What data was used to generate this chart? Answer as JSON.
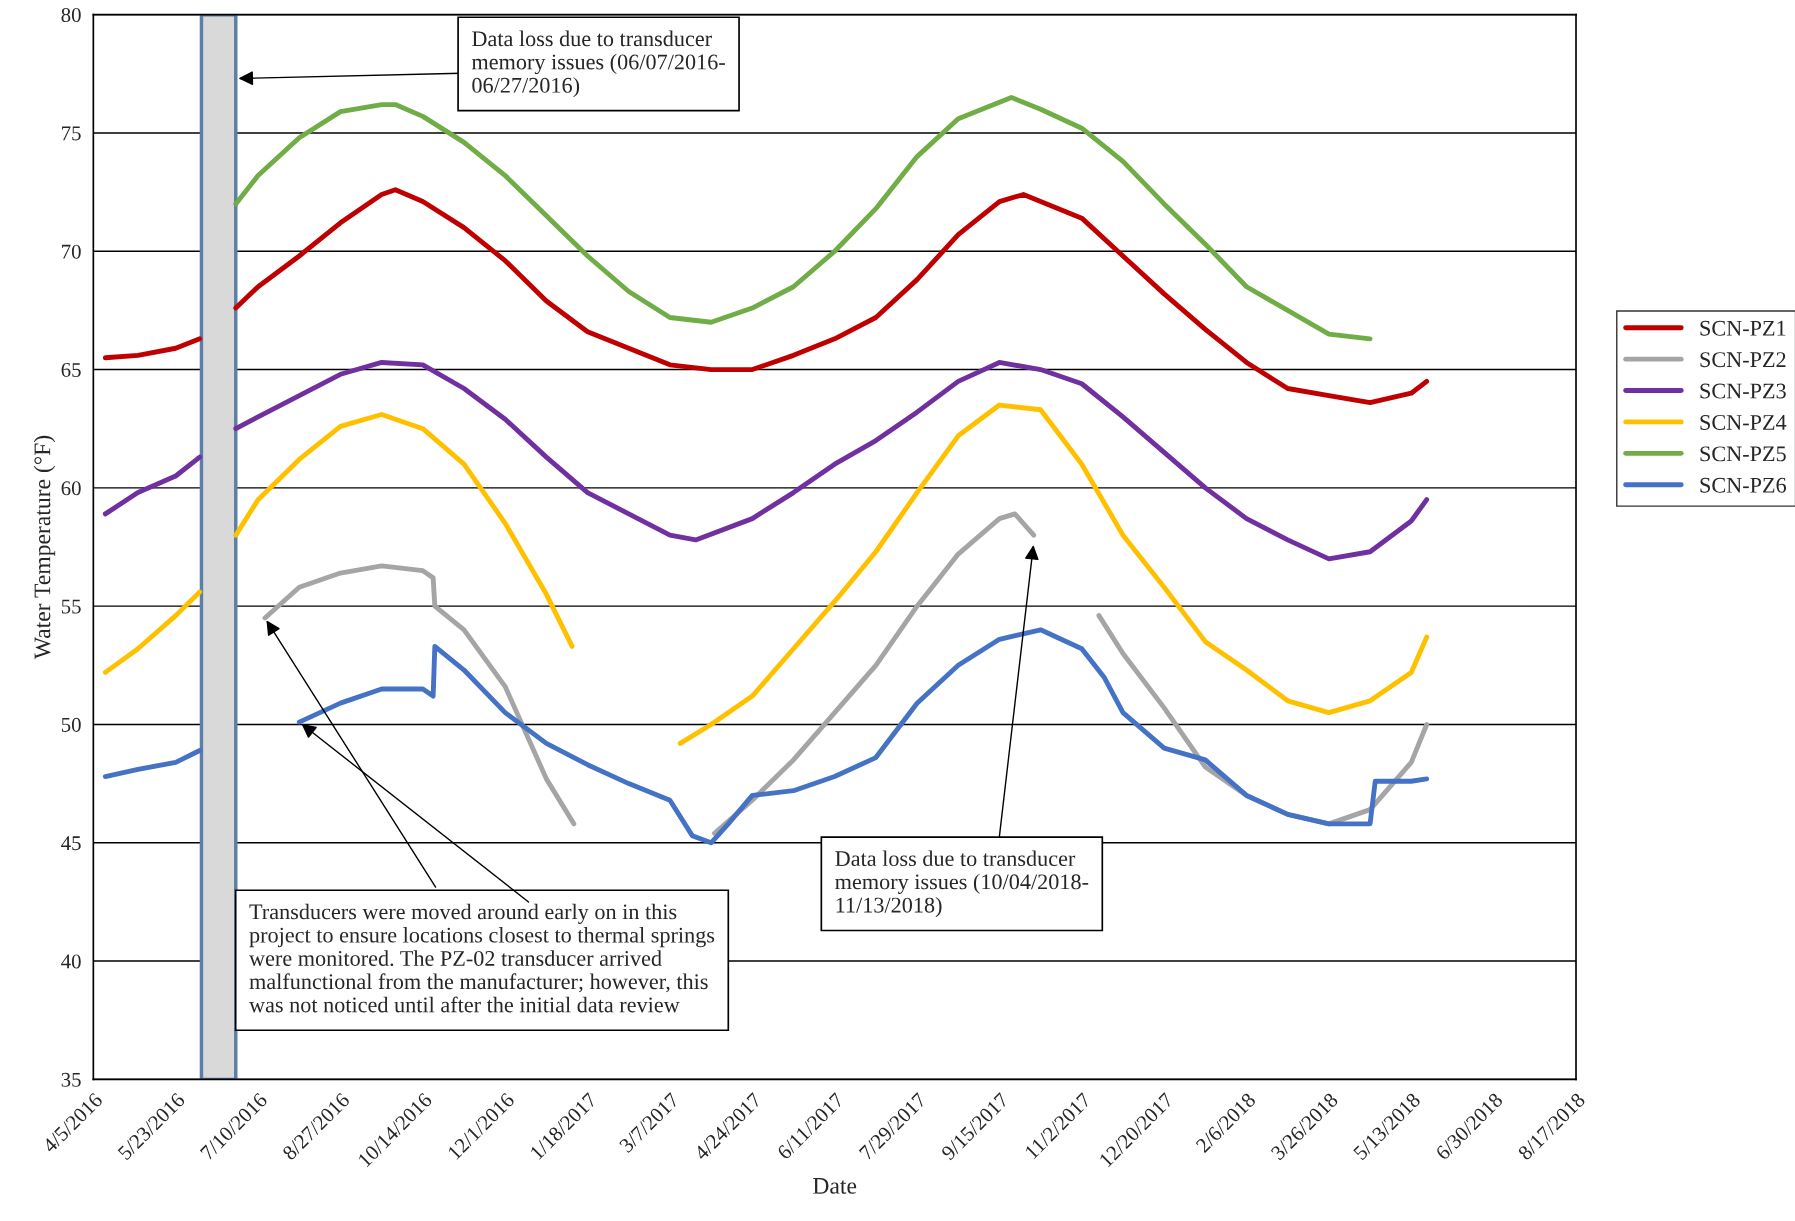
{
  "chart_data": {
    "type": "line",
    "xlabel": "Date",
    "ylabel": "Water Temperature (°F)",
    "xlim": [
      "2016-04-05",
      "2018-08-17"
    ],
    "ylim": [
      35,
      80
    ],
    "yticks": [
      35,
      40,
      45,
      50,
      55,
      60,
      65,
      70,
      75,
      80
    ],
    "xticks": [
      {
        "value": "2016-04-05",
        "label": "4/5/2016"
      },
      {
        "value": "2016-05-23",
        "label": "5/23/2016"
      },
      {
        "value": "2016-07-10",
        "label": "7/10/2016"
      },
      {
        "value": "2016-08-27",
        "label": "8/27/2016"
      },
      {
        "value": "2016-10-14",
        "label": "10/14/2016"
      },
      {
        "value": "2016-12-01",
        "label": "12/1/2016"
      },
      {
        "value": "2017-01-18",
        "label": "1/18/2017"
      },
      {
        "value": "2017-03-07",
        "label": "3/7/2017"
      },
      {
        "value": "2017-04-24",
        "label": "4/24/2017"
      },
      {
        "value": "2017-06-11",
        "label": "6/11/2017"
      },
      {
        "value": "2017-07-29",
        "label": "7/29/2017"
      },
      {
        "value": "2017-09-15",
        "label": "9/15/2017"
      },
      {
        "value": "2017-11-02",
        "label": "11/2/2017"
      },
      {
        "value": "2017-12-20",
        "label": "12/20/2017"
      },
      {
        "value": "2018-02-06",
        "label": "2/6/2018"
      },
      {
        "value": "2018-03-26",
        "label": "3/26/2018"
      },
      {
        "value": "2018-05-13",
        "label": "5/13/2018"
      },
      {
        "value": "2018-06-30",
        "label": "6/30/2018"
      },
      {
        "value": "2018-08-17",
        "label": "8/17/2018"
      }
    ],
    "grid": "y",
    "legend": "right",
    "line_style": "solid",
    "marker": "none",
    "bands": [
      {
        "axis": "x",
        "from": "2016-06-07",
        "to": "2016-06-27",
        "color": "#d9d9d9"
      }
    ],
    "annotations": [
      "Data loss due to transducer\nmemory issues (06/07/2016-\n06/27/2016)",
      "Data loss due to transducer\nmemory issues (10/04/2018-\n11/13/2018)",
      {
        "text": "Transducers were moved around early on in this\nproject to ensure locations closest to thermal springs\nwere monitored. The PZ-02 transducer arrived\nmalfunctional from the manufacturer; however, this\nwas not noticed until after the initial data review",
        "x": "2016-07-14",
        "y": 54.5
      }
    ],
    "series": [
      {
        "name": "SCN-PZ1",
        "color": "#c00000",
        "x": [
          "2016-04-12",
          "2016-05-01",
          "2016-05-23",
          "2016-06-06",
          "2016-06-16",
          "2016-06-27",
          "2016-07-10",
          "2016-08-03",
          "2016-08-27",
          "2016-09-20",
          "2016-09-28",
          "2016-10-14",
          "2016-11-07",
          "2016-12-01",
          "2016-12-25",
          "2017-01-18",
          "2017-02-11",
          "2017-03-07",
          "2017-03-31",
          "2017-04-24",
          "2017-05-18",
          "2017-06-11",
          "2017-07-05",
          "2017-07-29",
          "2017-08-22",
          "2017-09-15",
          "2017-09-29",
          "2017-10-09",
          "2017-11-02",
          "2017-11-26",
          "2017-12-20",
          "2018-01-13",
          "2018-02-06",
          "2018-03-02",
          "2018-03-26",
          "2018-04-19",
          "2018-05-13",
          "2018-05-22"
        ],
        "values": [
          65.5,
          65.6,
          65.9,
          66.3,
          null,
          67.6,
          68.5,
          69.8,
          71.2,
          72.4,
          72.6,
          72.1,
          71.0,
          69.6,
          67.9,
          66.6,
          65.9,
          65.2,
          65.0,
          65.0,
          65.6,
          66.3,
          67.2,
          68.8,
          70.7,
          72.1,
          72.4,
          72.1,
          71.4,
          69.8,
          68.2,
          66.7,
          65.3,
          64.2,
          63.9,
          63.6,
          64.0,
          64.5
        ]
      },
      {
        "name": "SCN-PZ2",
        "color": "#a5a5a5",
        "x": [
          "2016-07-14",
          "2016-08-03",
          "2016-08-27",
          "2016-09-20",
          "2016-10-14",
          "2016-10-20",
          "2016-10-21",
          "2016-11-07",
          "2016-12-01",
          "2016-12-25",
          "2017-01-10",
          "2017-02-15",
          "2017-04-02",
          "2017-04-24",
          "2017-05-18",
          "2017-06-11",
          "2017-07-05",
          "2017-07-29",
          "2017-08-22",
          "2017-09-15",
          "2017-09-24",
          "2017-10-05",
          "2017-10-25",
          "2017-11-12",
          "2017-11-26",
          "2017-12-20",
          "2018-01-13",
          "2018-02-06",
          "2018-03-02",
          "2018-03-26",
          "2018-04-19",
          "2018-05-13",
          "2018-05-22"
        ],
        "values": [
          54.5,
          55.8,
          56.4,
          56.7,
          56.5,
          56.2,
          55.0,
          54.0,
          51.6,
          47.7,
          45.8,
          null,
          45.4,
          46.8,
          48.5,
          50.5,
          52.5,
          55.0,
          57.2,
          58.7,
          58.9,
          58.0,
          null,
          54.6,
          53.0,
          50.7,
          48.2,
          47.0,
          46.2,
          45.8,
          46.4,
          48.4,
          50.0
        ]
      },
      {
        "name": "SCN-PZ3",
        "color": "#7030a0",
        "x": [
          "2016-04-12",
          "2016-05-01",
          "2016-05-23",
          "2016-06-06",
          "2016-06-16",
          "2016-06-27",
          "2016-07-10",
          "2016-08-03",
          "2016-08-27",
          "2016-09-20",
          "2016-10-14",
          "2016-11-07",
          "2016-12-01",
          "2016-12-25",
          "2017-01-18",
          "2017-02-11",
          "2017-03-07",
          "2017-03-22",
          "2017-04-24",
          "2017-05-18",
          "2017-06-11",
          "2017-07-05",
          "2017-07-29",
          "2017-08-22",
          "2017-09-15",
          "2017-10-09",
          "2017-11-02",
          "2017-11-26",
          "2017-12-20",
          "2018-01-13",
          "2018-02-06",
          "2018-03-02",
          "2018-03-26",
          "2018-04-19",
          "2018-05-13",
          "2018-05-22"
        ],
        "values": [
          58.9,
          59.8,
          60.5,
          61.3,
          null,
          62.5,
          63.0,
          63.9,
          64.8,
          65.3,
          65.2,
          64.2,
          62.9,
          61.3,
          59.8,
          58.9,
          58.0,
          57.8,
          58.7,
          59.8,
          61.0,
          62.0,
          63.2,
          64.5,
          65.3,
          65.0,
          64.4,
          63.0,
          61.5,
          60.0,
          58.7,
          57.8,
          57.0,
          57.3,
          58.6,
          59.5
        ]
      },
      {
        "name": "SCN-PZ4",
        "color": "#ffc000",
        "x": [
          "2016-04-12",
          "2016-05-01",
          "2016-05-23",
          "2016-06-06",
          "2016-06-16",
          "2016-06-27",
          "2016-07-10",
          "2016-08-03",
          "2016-08-27",
          "2016-09-20",
          "2016-10-14",
          "2016-11-07",
          "2016-12-01",
          "2016-12-25",
          "2017-01-09",
          "2017-02-10",
          "2017-03-13",
          "2017-03-31",
          "2017-04-24",
          "2017-05-18",
          "2017-06-11",
          "2017-07-05",
          "2017-07-29",
          "2017-08-22",
          "2017-09-15",
          "2017-10-09",
          "2017-11-02",
          "2017-11-26",
          "2017-12-20",
          "2018-01-13",
          "2018-02-06",
          "2018-03-02",
          "2018-03-26",
          "2018-04-19",
          "2018-05-13",
          "2018-05-22"
        ],
        "values": [
          52.2,
          53.2,
          54.6,
          55.6,
          null,
          58.0,
          59.5,
          61.2,
          62.6,
          63.1,
          62.5,
          61.0,
          58.5,
          55.5,
          53.3,
          null,
          49.2,
          50.0,
          51.2,
          53.2,
          55.2,
          57.3,
          59.8,
          62.2,
          63.5,
          63.3,
          61.0,
          58.0,
          55.8,
          53.5,
          52.3,
          51.0,
          50.5,
          51.0,
          52.2,
          53.7
        ]
      },
      {
        "name": "SCN-PZ5",
        "color": "#70ad47",
        "x": [
          "2016-06-27",
          "2016-07-10",
          "2016-08-03",
          "2016-08-27",
          "2016-09-20",
          "2016-09-28",
          "2016-10-14",
          "2016-11-07",
          "2016-12-01",
          "2016-12-25",
          "2017-01-18",
          "2017-02-11",
          "2017-03-07",
          "2017-03-31",
          "2017-04-24",
          "2017-05-18",
          "2017-06-11",
          "2017-07-05",
          "2017-07-29",
          "2017-08-22",
          "2017-09-15",
          "2017-09-22",
          "2017-10-09",
          "2017-11-02",
          "2017-11-26",
          "2017-12-20",
          "2018-01-13",
          "2018-02-06",
          "2018-03-02",
          "2018-03-26",
          "2018-04-19"
        ],
        "values": [
          72.0,
          73.2,
          74.8,
          75.9,
          76.2,
          76.2,
          75.7,
          74.6,
          73.2,
          71.5,
          69.8,
          68.3,
          67.2,
          67.0,
          67.6,
          68.5,
          70.0,
          71.8,
          74.0,
          75.6,
          76.3,
          76.5,
          76.0,
          75.2,
          73.8,
          72.0,
          70.3,
          68.5,
          67.5,
          66.5,
          66.3
        ]
      },
      {
        "name": "SCN-PZ6",
        "color": "#4472c4",
        "x": [
          "2016-04-12",
          "2016-05-01",
          "2016-05-23",
          "2016-06-06",
          "2016-06-16",
          "2016-08-03",
          "2016-08-27",
          "2016-09-20",
          "2016-10-14",
          "2016-10-20",
          "2016-10-21",
          "2016-11-07",
          "2016-12-01",
          "2016-12-25",
          "2017-01-18",
          "2017-02-11",
          "2017-03-07",
          "2017-03-20",
          "2017-03-31",
          "2017-04-10",
          "2017-04-24",
          "2017-05-18",
          "2017-06-11",
          "2017-07-05",
          "2017-07-29",
          "2017-08-22",
          "2017-09-15",
          "2017-10-09",
          "2017-11-02",
          "2017-11-15",
          "2017-11-26",
          "2017-12-20",
          "2018-01-13",
          "2018-02-06",
          "2018-03-02",
          "2018-03-26",
          "2018-04-19",
          "2018-04-22",
          "2018-05-13",
          "2018-05-22"
        ],
        "values": [
          47.8,
          48.1,
          48.4,
          48.9,
          null,
          50.1,
          50.9,
          51.5,
          51.5,
          51.2,
          53.3,
          52.3,
          50.5,
          49.2,
          48.3,
          47.5,
          46.8,
          45.3,
          45.0,
          45.8,
          47.0,
          47.2,
          47.8,
          48.6,
          50.9,
          52.5,
          53.6,
          54.0,
          53.2,
          52.0,
          50.5,
          49.0,
          48.5,
          47.0,
          46.2,
          45.8,
          45.8,
          47.6,
          47.6,
          47.7
        ]
      }
    ]
  }
}
